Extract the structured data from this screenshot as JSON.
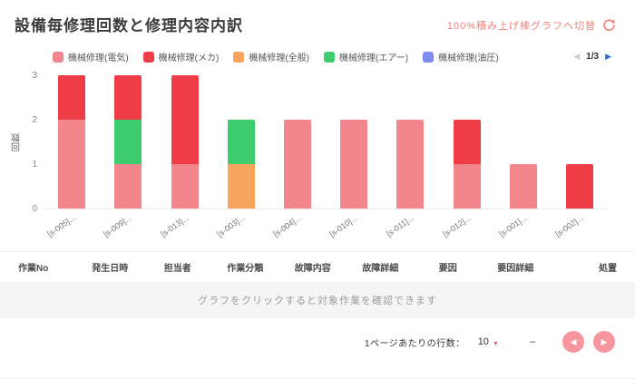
{
  "header": {
    "title": "設備毎修理回数と修理内容内訳",
    "toggle_label": "100%積み上げ棒グラフへ切替"
  },
  "legend_pager": {
    "current": "1/3"
  },
  "icons": {
    "prev_arrow": "◀",
    "next_arrow": "▶",
    "dropdown_arrow": "▼"
  },
  "chart_data": {
    "type": "bar",
    "stacked": true,
    "ylabel": "回数",
    "ylim": [
      0,
      3
    ],
    "yticks": [
      0,
      1,
      2,
      3
    ],
    "legend_position": "top",
    "categories": [
      "[s-005]...",
      "[s-009]...",
      "[s-013]...",
      "[s-003]...",
      "[s-004]...",
      "[s-010]...",
      "[s-011]...",
      "[s-012]...",
      "[s-001]...",
      "[s-002]..."
    ],
    "series": [
      {
        "name": "機械修理(電気)",
        "color": "#f2868c",
        "values": [
          2,
          1,
          1,
          0,
          2,
          2,
          2,
          1,
          1,
          0
        ]
      },
      {
        "name": "機械修理(メカ)",
        "color": "#ee3d47",
        "values": [
          1,
          1,
          2,
          0,
          0,
          0,
          0,
          1,
          0,
          1
        ]
      },
      {
        "name": "機械修理(全般)",
        "color": "#f7a55c",
        "values": [
          0,
          0,
          0,
          1,
          0,
          0,
          0,
          0,
          0,
          0
        ]
      },
      {
        "name": "機械修理(エアー)",
        "color": "#3ecd6e",
        "values": [
          0,
          1,
          0,
          1,
          0,
          0,
          0,
          0,
          0,
          0
        ]
      },
      {
        "name": "機械修理(油圧)",
        "color": "#7d8cee",
        "values": [
          0,
          0,
          0,
          0,
          0,
          0,
          0,
          0,
          0,
          0
        ]
      }
    ],
    "stack_order_bottom_to_top": [
      "機械修理(電気)",
      "機械修理(全般)",
      "機械修理(エアー)",
      "機械修理(メカ)",
      "機械修理(油圧)"
    ]
  },
  "table": {
    "columns": [
      "作業No",
      "発生日時",
      "担当者",
      "作業分類",
      "故障内容",
      "故障詳細",
      "要因",
      "要因詳細",
      "処置"
    ],
    "empty_message": "グラフをクリックすると対象作業を確認できます"
  },
  "footer": {
    "rows_per_page_label": "1ページあたりの行数：",
    "rows_per_page_value": "10",
    "range_text": "–"
  },
  "colors": {
    "accent": "#f0837c",
    "pager_next_blue": "#3568dd",
    "pagination_button": "#f6959b"
  }
}
